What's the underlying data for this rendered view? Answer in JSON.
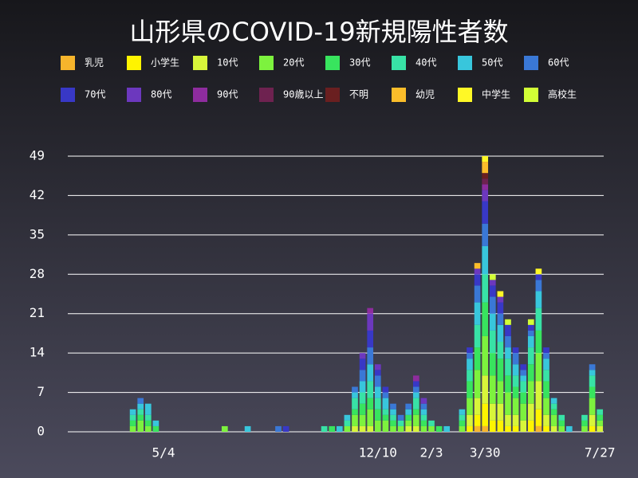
{
  "chart_data": {
    "type": "stacked-bar",
    "title": "山形県のCOVID-19新規陽性者数",
    "categories": [
      null,
      null,
      null,
      null,
      null,
      null,
      null,
      null,
      null,
      null,
      null,
      null,
      "5/4",
      null,
      null,
      null,
      null,
      null,
      null,
      null,
      null,
      null,
      null,
      null,
      null,
      null,
      null,
      null,
      null,
      null,
      null,
      null,
      null,
      null,
      null,
      null,
      null,
      null,
      null,
      null,
      "12/10",
      null,
      null,
      null,
      null,
      null,
      null,
      "2/3",
      null,
      null,
      null,
      null,
      null,
      null,
      "3/30",
      null,
      null,
      null,
      null,
      null,
      null,
      null,
      null,
      null,
      null,
      null,
      null,
      null,
      null,
      "7/27"
    ],
    "ylim": [
      0,
      49
    ],
    "yticks": [
      0,
      7,
      14,
      21,
      28,
      35,
      42,
      49
    ],
    "grid": true,
    "series": [
      {
        "name": "乳児",
        "color": "#f7b52c",
        "values": [
          0,
          0,
          0,
          0,
          0,
          0,
          0,
          0,
          0,
          0,
          0,
          0,
          0,
          0,
          0,
          0,
          0,
          0,
          0,
          0,
          0,
          0,
          0,
          0,
          0,
          0,
          0,
          0,
          0,
          0,
          0,
          0,
          0,
          0,
          0,
          0,
          0,
          0,
          0,
          0,
          0,
          0,
          0,
          0,
          0,
          0,
          0,
          0,
          0,
          0,
          0,
          0,
          0,
          1,
          1,
          0,
          0,
          0,
          0,
          0,
          0,
          1,
          0,
          0,
          0,
          0,
          0,
          0,
          0,
          0
        ]
      },
      {
        "name": "小学生",
        "color": "#fff400",
        "values": [
          0,
          0,
          0,
          0,
          0,
          0,
          0,
          0,
          0,
          0,
          0,
          0,
          0,
          0,
          0,
          0,
          0,
          0,
          0,
          0,
          0,
          0,
          0,
          0,
          0,
          0,
          0,
          0,
          0,
          0,
          0,
          0,
          0,
          0,
          0,
          0,
          0,
          0,
          0,
          0,
          0,
          0,
          0,
          0,
          0,
          0,
          0,
          0,
          0,
          0,
          0,
          0,
          1,
          2,
          4,
          2,
          2,
          1,
          1,
          0,
          2,
          3,
          1,
          0,
          0,
          0,
          0,
          0,
          1,
          0
        ]
      },
      {
        "name": "10代",
        "color": "#d8f53a",
        "values": [
          0,
          0,
          0,
          0,
          0,
          0,
          0,
          0,
          0,
          0,
          0,
          0,
          0,
          0,
          0,
          0,
          0,
          0,
          0,
          0,
          0,
          0,
          0,
          0,
          0,
          0,
          0,
          0,
          0,
          0,
          0,
          0,
          0,
          0,
          0,
          0,
          0,
          1,
          1,
          1,
          0,
          0,
          0,
          0,
          1,
          1,
          0,
          0,
          0,
          0,
          0,
          0,
          2,
          3,
          5,
          3,
          3,
          2,
          2,
          2,
          3,
          5,
          2,
          1,
          0,
          0,
          0,
          0,
          2,
          1
        ]
      },
      {
        "name": "20代",
        "color": "#7df23e",
        "values": [
          0,
          0,
          0,
          0,
          0,
          0,
          0,
          0,
          1,
          2,
          1,
          0,
          0,
          0,
          0,
          0,
          0,
          0,
          0,
          0,
          1,
          0,
          0,
          0,
          0,
          0,
          0,
          0,
          0,
          0,
          0,
          0,
          0,
          0,
          0,
          0,
          1,
          2,
          2,
          3,
          2,
          2,
          1,
          1,
          1,
          2,
          1,
          1,
          0,
          0,
          0,
          1,
          3,
          5,
          7,
          5,
          4,
          4,
          3,
          3,
          4,
          5,
          3,
          2,
          1,
          0,
          0,
          1,
          3,
          1
        ]
      },
      {
        "name": "30代",
        "color": "#38e45e",
        "values": [
          0,
          0,
          0,
          0,
          0,
          0,
          0,
          0,
          1,
          1,
          1,
          1,
          0,
          0,
          0,
          0,
          0,
          0,
          0,
          0,
          0,
          0,
          0,
          0,
          0,
          0,
          0,
          0,
          0,
          0,
          0,
          0,
          0,
          0,
          1,
          0,
          0,
          1,
          2,
          2,
          2,
          1,
          1,
          0,
          1,
          1,
          1,
          0,
          1,
          0,
          0,
          1,
          3,
          4,
          6,
          4,
          4,
          3,
          2,
          2,
          3,
          4,
          3,
          1,
          1,
          0,
          0,
          1,
          2,
          1
        ]
      },
      {
        "name": "40代",
        "color": "#38e2a6",
        "values": [
          0,
          0,
          0,
          0,
          0,
          0,
          0,
          0,
          1,
          1,
          1,
          0,
          0,
          0,
          0,
          0,
          0,
          0,
          0,
          0,
          0,
          0,
          0,
          0,
          0,
          0,
          0,
          0,
          0,
          0,
          0,
          0,
          0,
          1,
          0,
          0,
          1,
          2,
          2,
          3,
          2,
          1,
          1,
          1,
          0,
          2,
          1,
          1,
          0,
          0,
          0,
          1,
          2,
          4,
          5,
          4,
          3,
          3,
          2,
          2,
          3,
          4,
          2,
          1,
          1,
          0,
          0,
          1,
          2,
          1
        ]
      },
      {
        "name": "50代",
        "color": "#38c6dc",
        "values": [
          0,
          0,
          0,
          0,
          0,
          0,
          0,
          0,
          1,
          1,
          2,
          1,
          0,
          0,
          0,
          0,
          0,
          0,
          0,
          0,
          0,
          0,
          0,
          1,
          0,
          0,
          0,
          0,
          0,
          0,
          0,
          0,
          0,
          0,
          0,
          1,
          1,
          1,
          2,
          3,
          2,
          2,
          1,
          0,
          1,
          1,
          1,
          0,
          0,
          1,
          0,
          1,
          2,
          4,
          5,
          3,
          3,
          2,
          2,
          1,
          2,
          3,
          2,
          1,
          0,
          1,
          0,
          0,
          1,
          0
        ]
      },
      {
        "name": "60代",
        "color": "#3a78d6",
        "values": [
          0,
          0,
          0,
          0,
          0,
          0,
          0,
          0,
          0,
          1,
          0,
          0,
          0,
          0,
          0,
          0,
          0,
          0,
          0,
          0,
          0,
          0,
          0,
          0,
          0,
          0,
          0,
          1,
          0,
          0,
          0,
          0,
          0,
          0,
          0,
          0,
          0,
          1,
          2,
          3,
          2,
          1,
          1,
          1,
          1,
          1,
          1,
          0,
          0,
          0,
          0,
          0,
          1,
          3,
          4,
          3,
          2,
          2,
          2,
          1,
          1,
          2,
          1,
          0,
          0,
          0,
          0,
          0,
          1,
          0
        ]
      },
      {
        "name": "70代",
        "color": "#3838c6",
        "values": [
          0,
          0,
          0,
          0,
          0,
          0,
          0,
          0,
          0,
          0,
          0,
          0,
          0,
          0,
          0,
          0,
          0,
          0,
          0,
          0,
          0,
          0,
          0,
          0,
          0,
          0,
          0,
          0,
          1,
          0,
          0,
          0,
          0,
          0,
          0,
          0,
          0,
          0,
          2,
          3,
          1,
          1,
          0,
          0,
          0,
          1,
          0,
          0,
          0,
          0,
          0,
          0,
          1,
          2,
          4,
          2,
          2,
          2,
          1,
          1,
          1,
          1,
          1,
          0,
          0,
          0,
          0,
          0,
          0,
          0
        ]
      },
      {
        "name": "80代",
        "color": "#6c38be",
        "values": [
          0,
          0,
          0,
          0,
          0,
          0,
          0,
          0,
          0,
          0,
          0,
          0,
          0,
          0,
          0,
          0,
          0,
          0,
          0,
          0,
          0,
          0,
          0,
          0,
          0,
          0,
          0,
          0,
          0,
          0,
          0,
          0,
          0,
          0,
          0,
          0,
          0,
          0,
          1,
          3,
          1,
          0,
          0,
          0,
          0,
          0,
          1,
          0,
          0,
          0,
          0,
          0,
          0,
          1,
          2,
          1,
          1,
          0,
          0,
          0,
          0,
          0,
          0,
          0,
          0,
          0,
          0,
          0,
          0,
          0
        ]
      },
      {
        "name": "90代",
        "color": "#8e2c9e",
        "values": [
          0,
          0,
          0,
          0,
          0,
          0,
          0,
          0,
          0,
          0,
          0,
          0,
          0,
          0,
          0,
          0,
          0,
          0,
          0,
          0,
          0,
          0,
          0,
          0,
          0,
          0,
          0,
          0,
          0,
          0,
          0,
          0,
          0,
          0,
          0,
          0,
          0,
          0,
          0,
          1,
          0,
          0,
          0,
          0,
          0,
          1,
          0,
          0,
          0,
          0,
          0,
          0,
          0,
          0,
          1,
          0,
          0,
          0,
          0,
          0,
          0,
          0,
          0,
          0,
          0,
          0,
          0,
          0,
          0,
          0
        ]
      },
      {
        "name": "90歳以上",
        "color": "#6e2250",
        "values": [
          0,
          0,
          0,
          0,
          0,
          0,
          0,
          0,
          0,
          0,
          0,
          0,
          0,
          0,
          0,
          0,
          0,
          0,
          0,
          0,
          0,
          0,
          0,
          0,
          0,
          0,
          0,
          0,
          0,
          0,
          0,
          0,
          0,
          0,
          0,
          0,
          0,
          0,
          0,
          0,
          0,
          0,
          0,
          0,
          0,
          0,
          0,
          0,
          0,
          0,
          0,
          0,
          0,
          0,
          1,
          0,
          0,
          0,
          0,
          0,
          0,
          0,
          0,
          0,
          0,
          0,
          0,
          0,
          0,
          0
        ]
      },
      {
        "name": "不明",
        "color": "#6a1f20",
        "values": [
          0,
          0,
          0,
          0,
          0,
          0,
          0,
          0,
          0,
          0,
          0,
          0,
          0,
          0,
          0,
          0,
          0,
          0,
          0,
          0,
          0,
          0,
          0,
          0,
          0,
          0,
          0,
          0,
          0,
          0,
          0,
          0,
          0,
          0,
          0,
          0,
          0,
          0,
          0,
          0,
          0,
          0,
          0,
          0,
          0,
          0,
          0,
          0,
          0,
          0,
          0,
          0,
          0,
          0,
          1,
          0,
          0,
          0,
          0,
          0,
          0,
          0,
          0,
          0,
          0,
          0,
          0,
          0,
          0,
          0
        ]
      },
      {
        "name": "幼児",
        "color": "#fbbd2a",
        "values": [
          0,
          0,
          0,
          0,
          0,
          0,
          0,
          0,
          0,
          0,
          0,
          0,
          0,
          0,
          0,
          0,
          0,
          0,
          0,
          0,
          0,
          0,
          0,
          0,
          0,
          0,
          0,
          0,
          0,
          0,
          0,
          0,
          0,
          0,
          0,
          0,
          0,
          0,
          0,
          0,
          0,
          0,
          0,
          0,
          0,
          0,
          0,
          0,
          0,
          0,
          0,
          0,
          0,
          1,
          2,
          0,
          0,
          0,
          0,
          0,
          0,
          0,
          0,
          0,
          0,
          0,
          0,
          0,
          0,
          0
        ]
      },
      {
        "name": "中学生",
        "color": "#fff826",
        "values": [
          0,
          0,
          0,
          0,
          0,
          0,
          0,
          0,
          0,
          0,
          0,
          0,
          0,
          0,
          0,
          0,
          0,
          0,
          0,
          0,
          0,
          0,
          0,
          0,
          0,
          0,
          0,
          0,
          0,
          0,
          0,
          0,
          0,
          0,
          0,
          0,
          0,
          0,
          0,
          0,
          0,
          0,
          0,
          0,
          0,
          0,
          0,
          0,
          0,
          0,
          0,
          0,
          0,
          0,
          1,
          0,
          1,
          0,
          0,
          0,
          0,
          1,
          0,
          0,
          0,
          0,
          0,
          0,
          0,
          0
        ]
      },
      {
        "name": "高校生",
        "color": "#d2ff36",
        "values": [
          0,
          0,
          0,
          0,
          0,
          0,
          0,
          0,
          0,
          0,
          0,
          0,
          0,
          0,
          0,
          0,
          0,
          0,
          0,
          0,
          0,
          0,
          0,
          0,
          0,
          0,
          0,
          0,
          0,
          0,
          0,
          0,
          0,
          0,
          0,
          0,
          0,
          0,
          0,
          0,
          0,
          0,
          0,
          0,
          0,
          0,
          0,
          0,
          0,
          0,
          0,
          0,
          0,
          0,
          0,
          1,
          0,
          1,
          0,
          0,
          1,
          0,
          0,
          0,
          0,
          0,
          0,
          0,
          0,
          0
        ]
      }
    ]
  }
}
